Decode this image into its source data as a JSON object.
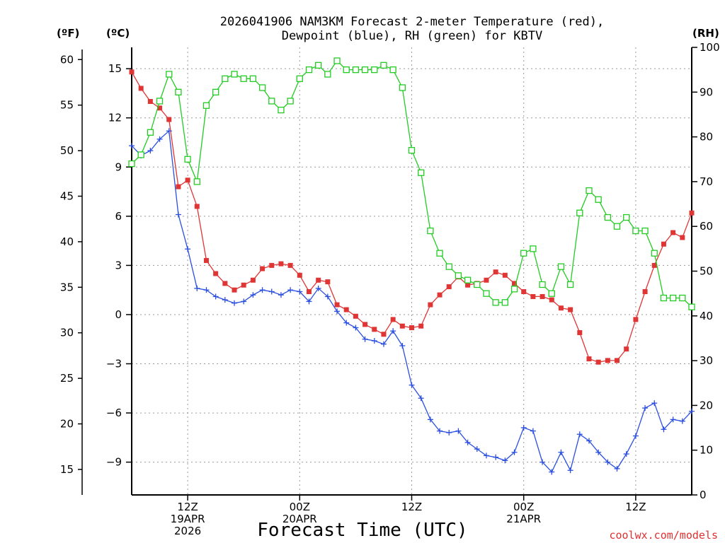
{
  "chart_data": {
    "type": "line",
    "title_line1": "2026041906 NAM3KM Forecast 2-meter Temperature (red),",
    "title_line2": "Dewpoint (blue), RH (green) for KBTV",
    "units": {
      "f": "(ºF)",
      "c": "(ºC)",
      "rh": "(RH)"
    },
    "xlabel": "Forecast Time (UTC)",
    "credit": "coolwx.com/models",
    "x_range_hours": [
      0,
      60
    ],
    "c_range": [
      -11,
      16.3
    ],
    "rh_range": [
      0,
      100
    ],
    "c_ticks": [
      "15",
      "12",
      "9",
      "6",
      "3",
      "0",
      "−3",
      "−6",
      "−9"
    ],
    "c_tick_values": [
      15,
      12,
      9,
      6,
      3,
      0,
      -3,
      -6,
      -9
    ],
    "f_ticks": [
      "60",
      "55",
      "50",
      "45",
      "40",
      "35",
      "30",
      "25",
      "20",
      "15"
    ],
    "f_tick_values": [
      60,
      55,
      50,
      45,
      40,
      35,
      30,
      25,
      20,
      15
    ],
    "rh_ticks": [
      "100",
      "90",
      "80",
      "70",
      "60",
      "50",
      "40",
      "30",
      "20",
      "10",
      "0"
    ],
    "rh_tick_values": [
      100,
      90,
      80,
      70,
      60,
      50,
      40,
      30,
      20,
      10,
      0
    ],
    "x_ticks": [
      {
        "hour": 6,
        "lines": [
          "12Z",
          "19APR",
          "2026"
        ]
      },
      {
        "hour": 18,
        "lines": [
          "00Z",
          "20APR"
        ]
      },
      {
        "hour": 30,
        "lines": [
          "12Z"
        ]
      },
      {
        "hour": 42,
        "lines": [
          "00Z",
          "21APR"
        ]
      },
      {
        "hour": 54,
        "lines": [
          "12Z"
        ]
      }
    ],
    "series": [
      {
        "name": "Temperature",
        "color": "#e03535",
        "marker": "filled-square",
        "x": [
          0,
          1,
          2,
          3,
          4,
          5,
          6,
          7,
          8,
          9,
          10,
          11,
          12,
          13,
          14,
          15,
          16,
          17,
          18,
          19,
          20,
          21,
          22,
          23,
          24,
          25,
          26,
          27,
          28,
          29,
          30,
          31,
          32,
          33,
          34,
          35,
          36,
          37,
          38,
          39,
          40,
          41,
          42,
          43,
          44,
          45,
          46,
          47,
          48,
          49,
          50,
          51,
          52,
          53,
          54,
          55,
          56,
          57,
          58,
          59,
          60
        ],
        "values": [
          14.8,
          13.8,
          13.0,
          12.6,
          11.9,
          7.8,
          8.2,
          6.6,
          3.3,
          2.5,
          1.9,
          1.5,
          1.8,
          2.1,
          2.8,
          3.0,
          3.1,
          3.0,
          2.4,
          1.4,
          2.1,
          2.0,
          0.6,
          0.3,
          -0.1,
          -0.6,
          -0.9,
          -1.2,
          -0.3,
          -0.7,
          -0.8,
          -0.7,
          0.6,
          1.2,
          1.7,
          2.3,
          1.8,
          1.9,
          2.1,
          2.6,
          2.4,
          1.9,
          1.4,
          1.1,
          1.1,
          0.9,
          0.4,
          0.3,
          -1.1,
          -2.7,
          -2.9,
          -2.8,
          -2.8,
          -2.1,
          -0.3,
          1.4,
          3.0,
          4.3,
          5.0,
          4.7,
          6.2
        ]
      },
      {
        "name": "Dewpoint",
        "color": "#2a4fe0",
        "marker": "plus",
        "x": [
          0,
          1,
          2,
          3,
          4,
          5,
          6,
          7,
          8,
          9,
          10,
          11,
          12,
          13,
          14,
          15,
          16,
          17,
          18,
          19,
          20,
          21,
          22,
          23,
          24,
          25,
          26,
          27,
          28,
          29,
          30,
          31,
          32,
          33,
          34,
          35,
          36,
          37,
          38,
          39,
          40,
          41,
          42,
          43,
          44,
          45,
          46,
          47,
          48,
          49,
          50,
          51,
          52,
          53,
          54,
          55,
          56,
          57,
          58,
          59,
          60
        ],
        "values": [
          10.3,
          9.7,
          10.0,
          10.7,
          11.2,
          6.1,
          4.0,
          1.6,
          1.5,
          1.1,
          0.9,
          0.7,
          0.8,
          1.2,
          1.5,
          1.4,
          1.2,
          1.5,
          1.4,
          0.8,
          1.6,
          1.1,
          0.2,
          -0.5,
          -0.8,
          -1.5,
          -1.6,
          -1.8,
          -1.0,
          -1.9,
          -4.3,
          -5.1,
          -6.4,
          -7.1,
          -7.2,
          -7.1,
          -7.8,
          -8.2,
          -8.6,
          -8.7,
          -8.9,
          -8.4,
          -6.9,
          -7.1,
          -9.0,
          -9.6,
          -8.4,
          -9.5,
          -7.3,
          -7.7,
          -8.4,
          -9.0,
          -9.4,
          -8.5,
          -7.4,
          -5.7,
          -5.4,
          -7.0,
          -6.4,
          -6.5,
          -5.9
        ]
      },
      {
        "name": "RH",
        "color": "#22cc22",
        "marker": "open-square",
        "axis": "rh",
        "x": [
          0,
          1,
          2,
          3,
          4,
          5,
          6,
          7,
          8,
          9,
          10,
          11,
          12,
          13,
          14,
          15,
          16,
          17,
          18,
          19,
          20,
          21,
          22,
          23,
          24,
          25,
          26,
          27,
          28,
          29,
          30,
          31,
          32,
          33,
          34,
          35,
          36,
          37,
          38,
          39,
          40,
          41,
          42,
          43,
          44,
          45,
          46,
          47,
          48,
          49,
          50,
          51,
          52,
          53,
          54,
          55,
          56,
          57,
          58,
          59,
          60
        ],
        "values": [
          74,
          76,
          81,
          88,
          94,
          90,
          75,
          70,
          87,
          90,
          93,
          94,
          93,
          93,
          91,
          88,
          86,
          88,
          93,
          95,
          96,
          94,
          97,
          95,
          95,
          95,
          95,
          96,
          95,
          91,
          77,
          72,
          59,
          54,
          51,
          49,
          48,
          47,
          45,
          43,
          43,
          46,
          54,
          55,
          47,
          45,
          51,
          47,
          63,
          68,
          66,
          62,
          60,
          62,
          59,
          59,
          54,
          44,
          44,
          44,
          42
        ]
      }
    ]
  }
}
